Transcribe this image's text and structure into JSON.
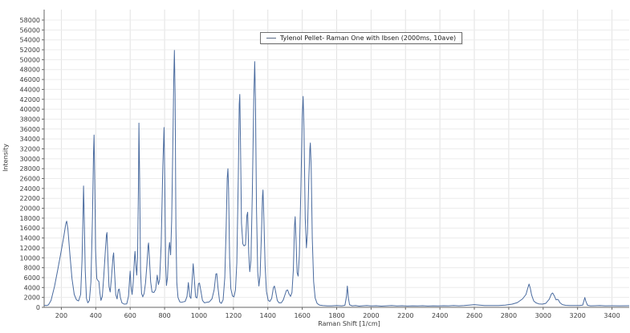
{
  "chart_data": {
    "type": "line",
    "title": "",
    "xlabel": "Raman Shift [1/cm]",
    "ylabel": "Intensity",
    "xlim": [
      100,
      3500
    ],
    "ylim": [
      0,
      58000
    ],
    "x_ticks": [
      200,
      400,
      600,
      800,
      1000,
      1200,
      1400,
      1600,
      1800,
      2000,
      2200,
      2400,
      2600,
      2800,
      3000,
      3200,
      3400
    ],
    "y_ticks": [
      0,
      2000,
      4000,
      6000,
      8000,
      10000,
      12000,
      14000,
      16000,
      18000,
      20000,
      22000,
      24000,
      26000,
      28000,
      30000,
      32000,
      34000,
      36000,
      38000,
      40000,
      42000,
      44000,
      46000,
      48000,
      50000,
      52000,
      54000,
      56000,
      58000
    ],
    "grid": true,
    "legend_position": "top-center",
    "series": [
      {
        "name": "Tylenol Pellet- Raman One with Ibsen (2000ms, 10ave)",
        "color": "#4a6b9f",
        "points": [
          [
            100,
            400
          ],
          [
            115,
            350
          ],
          [
            125,
            500
          ],
          [
            140,
            1400
          ],
          [
            160,
            4200
          ],
          [
            180,
            7800
          ],
          [
            200,
            11500
          ],
          [
            215,
            14500
          ],
          [
            226,
            16900
          ],
          [
            231,
            17400
          ],
          [
            238,
            15800
          ],
          [
            250,
            10500
          ],
          [
            262,
            5800
          ],
          [
            275,
            2600
          ],
          [
            288,
            1500
          ],
          [
            300,
            1300
          ],
          [
            312,
            2600
          ],
          [
            320,
            9500
          ],
          [
            326,
            19000
          ],
          [
            329,
            24500
          ],
          [
            333,
            18000
          ],
          [
            339,
            7500
          ],
          [
            346,
            1800
          ],
          [
            354,
            900
          ],
          [
            363,
            1400
          ],
          [
            372,
            5200
          ],
          [
            381,
            18000
          ],
          [
            387,
            31000
          ],
          [
            390,
            34800
          ],
          [
            394,
            26000
          ],
          [
            399,
            11500
          ],
          [
            406,
            5800
          ],
          [
            413,
            5400
          ],
          [
            418,
            5200
          ],
          [
            424,
            2900
          ],
          [
            430,
            1400
          ],
          [
            438,
            2200
          ],
          [
            447,
            6500
          ],
          [
            456,
            11500
          ],
          [
            462,
            14600
          ],
          [
            465,
            15100
          ],
          [
            470,
            10500
          ],
          [
            477,
            4200
          ],
          [
            484,
            3100
          ],
          [
            492,
            6200
          ],
          [
            500,
            10200
          ],
          [
            504,
            11000
          ],
          [
            509,
            7200
          ],
          [
            516,
            2600
          ],
          [
            524,
            1700
          ],
          [
            531,
            3500
          ],
          [
            536,
            3700
          ],
          [
            543,
            2000
          ],
          [
            552,
            900
          ],
          [
            565,
            650
          ],
          [
            580,
            700
          ],
          [
            590,
            2200
          ],
          [
            597,
            6000
          ],
          [
            600,
            7300
          ],
          [
            605,
            4200
          ],
          [
            611,
            2600
          ],
          [
            618,
            5200
          ],
          [
            625,
            10000
          ],
          [
            628,
            11300
          ],
          [
            633,
            8500
          ],
          [
            638,
            6500
          ],
          [
            643,
            10000
          ],
          [
            648,
            24000
          ],
          [
            651,
            37200
          ],
          [
            655,
            26000
          ],
          [
            660,
            7500
          ],
          [
            666,
            2800
          ],
          [
            673,
            2100
          ],
          [
            681,
            2800
          ],
          [
            689,
            4900
          ],
          [
            697,
            8500
          ],
          [
            704,
            12400
          ],
          [
            707,
            13000
          ],
          [
            712,
            9800
          ],
          [
            719,
            5200
          ],
          [
            727,
            3100
          ],
          [
            738,
            3000
          ],
          [
            748,
            3600
          ],
          [
            757,
            6500
          ],
          [
            764,
            4600
          ],
          [
            771,
            5600
          ],
          [
            780,
            12500
          ],
          [
            790,
            28500
          ],
          [
            797,
            36300
          ],
          [
            801,
            26000
          ],
          [
            806,
            8500
          ],
          [
            811,
            4400
          ],
          [
            817,
            6000
          ],
          [
            824,
            11500
          ],
          [
            829,
            13100
          ],
          [
            835,
            10600
          ],
          [
            841,
            17500
          ],
          [
            848,
            33000
          ],
          [
            853,
            46000
          ],
          [
            857,
            51900
          ],
          [
            861,
            43000
          ],
          [
            866,
            16000
          ],
          [
            871,
            5000
          ],
          [
            878,
            2000
          ],
          [
            888,
            1100
          ],
          [
            898,
            1000
          ],
          [
            908,
            1100
          ],
          [
            920,
            1200
          ],
          [
            930,
            2200
          ],
          [
            938,
            5000
          ],
          [
            946,
            2200
          ],
          [
            953,
            1800
          ],
          [
            960,
            5500
          ],
          [
            966,
            8800
          ],
          [
            972,
            6000
          ],
          [
            980,
            2100
          ],
          [
            988,
            1900
          ],
          [
            997,
            4800
          ],
          [
            1003,
            4900
          ],
          [
            1010,
            3500
          ],
          [
            1020,
            1400
          ],
          [
            1032,
            900
          ],
          [
            1045,
            1000
          ],
          [
            1060,
            1100
          ],
          [
            1075,
            1700
          ],
          [
            1088,
            3500
          ],
          [
            1098,
            6700
          ],
          [
            1103,
            6800
          ],
          [
            1110,
            4000
          ],
          [
            1120,
            1100
          ],
          [
            1130,
            800
          ],
          [
            1140,
            1500
          ],
          [
            1150,
            6000
          ],
          [
            1158,
            16000
          ],
          [
            1164,
            26000
          ],
          [
            1168,
            28000
          ],
          [
            1172,
            24000
          ],
          [
            1178,
            10000
          ],
          [
            1185,
            3800
          ],
          [
            1194,
            2300
          ],
          [
            1203,
            2100
          ],
          [
            1212,
            3500
          ],
          [
            1220,
            9000
          ],
          [
            1228,
            26000
          ],
          [
            1234,
            41000
          ],
          [
            1237,
            43000
          ],
          [
            1241,
            34000
          ],
          [
            1247,
            17000
          ],
          [
            1255,
            12800
          ],
          [
            1262,
            12400
          ],
          [
            1270,
            12600
          ],
          [
            1278,
            18500
          ],
          [
            1283,
            19200
          ],
          [
            1289,
            11000
          ],
          [
            1295,
            7200
          ],
          [
            1302,
            9500
          ],
          [
            1310,
            23000
          ],
          [
            1318,
            42000
          ],
          [
            1324,
            49600
          ],
          [
            1328,
            42000
          ],
          [
            1334,
            20000
          ],
          [
            1341,
            7200
          ],
          [
            1348,
            4300
          ],
          [
            1355,
            6500
          ],
          [
            1363,
            15000
          ],
          [
            1369,
            22500
          ],
          [
            1372,
            23700
          ],
          [
            1377,
            18000
          ],
          [
            1384,
            8500
          ],
          [
            1392,
            3200
          ],
          [
            1402,
            1400
          ],
          [
            1412,
            1200
          ],
          [
            1422,
            1800
          ],
          [
            1432,
            3900
          ],
          [
            1438,
            4300
          ],
          [
            1445,
            3200
          ],
          [
            1455,
            1400
          ],
          [
            1465,
            900
          ],
          [
            1478,
            900
          ],
          [
            1490,
            1500
          ],
          [
            1500,
            2600
          ],
          [
            1508,
            3400
          ],
          [
            1515,
            3500
          ],
          [
            1523,
            2700
          ],
          [
            1532,
            2200
          ],
          [
            1540,
            3000
          ],
          [
            1548,
            7500
          ],
          [
            1555,
            16500
          ],
          [
            1559,
            18300
          ],
          [
            1564,
            13500
          ],
          [
            1570,
            7000
          ],
          [
            1576,
            6300
          ],
          [
            1583,
            10500
          ],
          [
            1592,
            24000
          ],
          [
            1600,
            38500
          ],
          [
            1605,
            42600
          ],
          [
            1610,
            36000
          ],
          [
            1617,
            18000
          ],
          [
            1624,
            12000
          ],
          [
            1630,
            15000
          ],
          [
            1638,
            26000
          ],
          [
            1644,
            32000
          ],
          [
            1647,
            33200
          ],
          [
            1652,
            28000
          ],
          [
            1658,
            14000
          ],
          [
            1666,
            5200
          ],
          [
            1675,
            1900
          ],
          [
            1686,
            800
          ],
          [
            1700,
            450
          ],
          [
            1720,
            350
          ],
          [
            1745,
            300
          ],
          [
            1770,
            300
          ],
          [
            1800,
            350
          ],
          [
            1830,
            300
          ],
          [
            1848,
            400
          ],
          [
            1857,
            2200
          ],
          [
            1862,
            4300
          ],
          [
            1868,
            1900
          ],
          [
            1875,
            500
          ],
          [
            1890,
            300
          ],
          [
            1910,
            350
          ],
          [
            1930,
            250
          ],
          [
            1950,
            300
          ],
          [
            1975,
            350
          ],
          [
            2000,
            280
          ],
          [
            2030,
            320
          ],
          [
            2060,
            250
          ],
          [
            2090,
            300
          ],
          [
            2120,
            350
          ],
          [
            2150,
            280
          ],
          [
            2180,
            320
          ],
          [
            2210,
            260
          ],
          [
            2240,
            310
          ],
          [
            2270,
            280
          ],
          [
            2300,
            330
          ],
          [
            2330,
            260
          ],
          [
            2360,
            300
          ],
          [
            2390,
            280
          ],
          [
            2420,
            330
          ],
          [
            2450,
            300
          ],
          [
            2480,
            350
          ],
          [
            2510,
            300
          ],
          [
            2540,
            350
          ],
          [
            2570,
            450
          ],
          [
            2600,
            550
          ],
          [
            2630,
            450
          ],
          [
            2660,
            380
          ],
          [
            2700,
            350
          ],
          [
            2740,
            380
          ],
          [
            2780,
            450
          ],
          [
            2820,
            650
          ],
          [
            2850,
            950
          ],
          [
            2880,
            1700
          ],
          [
            2900,
            2600
          ],
          [
            2910,
            3800
          ],
          [
            2918,
            4700
          ],
          [
            2925,
            3900
          ],
          [
            2933,
            2500
          ],
          [
            2945,
            1300
          ],
          [
            2958,
            900
          ],
          [
            2975,
            700
          ],
          [
            2995,
            650
          ],
          [
            3015,
            800
          ],
          [
            3035,
            1600
          ],
          [
            3048,
            2700
          ],
          [
            3055,
            2900
          ],
          [
            3065,
            2300
          ],
          [
            3075,
            1500
          ],
          [
            3083,
            1600
          ],
          [
            3088,
            1500
          ],
          [
            3098,
            900
          ],
          [
            3112,
            550
          ],
          [
            3130,
            400
          ],
          [
            3155,
            350
          ],
          [
            3180,
            350
          ],
          [
            3210,
            350
          ],
          [
            3230,
            450
          ],
          [
            3242,
            2000
          ],
          [
            3248,
            1200
          ],
          [
            3258,
            400
          ],
          [
            3275,
            300
          ],
          [
            3300,
            320
          ],
          [
            3330,
            350
          ],
          [
            3360,
            300
          ],
          [
            3400,
            320
          ],
          [
            3440,
            300
          ],
          [
            3500,
            320
          ]
        ]
      }
    ]
  },
  "colors": {
    "series": "#4a6b9f",
    "grid_horizontal": "#ececec",
    "grid_vertical": "#e2e2e2",
    "axis": "#666666",
    "tick_text": "#3c3c3c",
    "background": "#ffffff",
    "legend_border": "#707070"
  }
}
